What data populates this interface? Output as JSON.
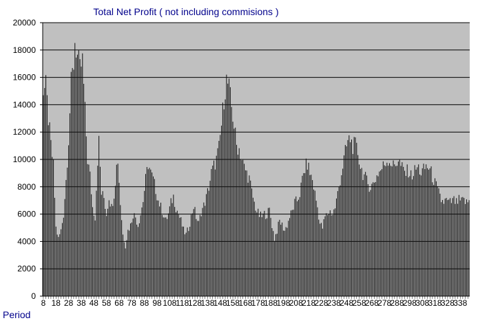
{
  "chart_data": {
    "type": "bar",
    "title": "Total Net Profit ( not including commisions )",
    "xlabel": "Period",
    "ylabel": "",
    "ylim": [
      0,
      20000
    ],
    "yticks": [
      0,
      2000,
      4000,
      6000,
      8000,
      10000,
      12000,
      14000,
      16000,
      18000,
      20000
    ],
    "ytick_labels": [
      "0",
      "2000",
      "4000",
      "6000",
      "8000",
      "10000",
      "12000",
      "14000",
      "16000",
      "18000",
      "20000"
    ],
    "grid": true,
    "x_start": 8,
    "x_end": 345,
    "xtick_labels": [
      "8",
      "18",
      "28",
      "38",
      "48",
      "58",
      "68",
      "78",
      "88",
      "98",
      "108",
      "118",
      "128",
      "138",
      "148",
      "158",
      "168",
      "178",
      "188",
      "198",
      "208",
      "218",
      "228",
      "238",
      "248",
      "258",
      "268",
      "278",
      "288",
      "298",
      "308",
      "318",
      "328",
      "338"
    ],
    "anchors": [
      [
        8,
        15000
      ],
      [
        10,
        15300
      ],
      [
        12,
        13000
      ],
      [
        14,
        11000
      ],
      [
        16,
        9500
      ],
      [
        18,
        5000
      ],
      [
        20,
        4200
      ],
      [
        22,
        4800
      ],
      [
        24,
        6000
      ],
      [
        26,
        8500
      ],
      [
        28,
        11500
      ],
      [
        30,
        15500
      ],
      [
        32,
        17000
      ],
      [
        33,
        18700
      ],
      [
        35,
        17500
      ],
      [
        37,
        16500
      ],
      [
        39,
        17200
      ],
      [
        41,
        13500
      ],
      [
        43,
        10000
      ],
      [
        45,
        8800
      ],
      [
        47,
        6500
      ],
      [
        49,
        5800
      ],
      [
        51,
        10000
      ],
      [
        52,
        11300
      ],
      [
        54,
        7500
      ],
      [
        56,
        7200
      ],
      [
        58,
        6000
      ],
      [
        60,
        7300
      ],
      [
        62,
        6500
      ],
      [
        64,
        7500
      ],
      [
        66,
        9500
      ],
      [
        67,
        10000
      ],
      [
        69,
        6800
      ],
      [
        71,
        4500
      ],
      [
        73,
        3700
      ],
      [
        75,
        4800
      ],
      [
        77,
        5200
      ],
      [
        79,
        6000
      ],
      [
        81,
        5800
      ],
      [
        83,
        5200
      ],
      [
        85,
        6000
      ],
      [
        87,
        7000
      ],
      [
        89,
        8500
      ],
      [
        91,
        9700
      ],
      [
        93,
        9000
      ],
      [
        95,
        8500
      ],
      [
        97,
        7800
      ],
      [
        99,
        7000
      ],
      [
        101,
        6500
      ],
      [
        103,
        6000
      ],
      [
        105,
        5500
      ],
      [
        107,
        6000
      ],
      [
        109,
        6800
      ],
      [
        111,
        7300
      ],
      [
        113,
        6500
      ],
      [
        115,
        6000
      ],
      [
        117,
        5500
      ],
      [
        119,
        4800
      ],
      [
        121,
        4500
      ],
      [
        123,
        5000
      ],
      [
        125,
        5800
      ],
      [
        127,
        6600
      ],
      [
        129,
        5800
      ],
      [
        131,
        5300
      ],
      [
        133,
        6200
      ],
      [
        135,
        6600
      ],
      [
        137,
        7200
      ],
      [
        139,
        8000
      ],
      [
        141,
        9000
      ],
      [
        143,
        9500
      ],
      [
        145,
        10000
      ],
      [
        147,
        10800
      ],
      [
        149,
        12500
      ],
      [
        151,
        14500
      ],
      [
        153,
        15800
      ],
      [
        155,
        15200
      ],
      [
        157,
        13800
      ],
      [
        159,
        12500
      ],
      [
        161,
        11000
      ],
      [
        163,
        10800
      ],
      [
        165,
        10000
      ],
      [
        167,
        9400
      ],
      [
        169,
        9000
      ],
      [
        171,
        8600
      ],
      [
        173,
        7600
      ],
      [
        175,
        6800
      ],
      [
        177,
        6200
      ],
      [
        179,
        5900
      ],
      [
        181,
        5800
      ],
      [
        183,
        6000
      ],
      [
        185,
        6000
      ],
      [
        187,
        6300
      ],
      [
        189,
        5200
      ],
      [
        191,
        4200
      ],
      [
        193,
        4800
      ],
      [
        195,
        5500
      ],
      [
        197,
        5200
      ],
      [
        199,
        4800
      ],
      [
        201,
        5200
      ],
      [
        203,
        5800
      ],
      [
        205,
        6200
      ],
      [
        207,
        6800
      ],
      [
        209,
        7000
      ],
      [
        211,
        7500
      ],
      [
        213,
        8500
      ],
      [
        215,
        9300
      ],
      [
        217,
        9700
      ],
      [
        219,
        9000
      ],
      [
        221,
        8500
      ],
      [
        223,
        7500
      ],
      [
        225,
        6500
      ],
      [
        227,
        5300
      ],
      [
        229,
        5000
      ],
      [
        231,
        5800
      ],
      [
        233,
        6000
      ],
      [
        235,
        6200
      ],
      [
        237,
        6000
      ],
      [
        239,
        6500
      ],
      [
        241,
        7500
      ],
      [
        243,
        8500
      ],
      [
        245,
        9500
      ],
      [
        247,
        10500
      ],
      [
        249,
        11300
      ],
      [
        251,
        11500
      ],
      [
        253,
        11000
      ],
      [
        255,
        11000
      ],
      [
        257,
        10500
      ],
      [
        259,
        9500
      ],
      [
        261,
        9000
      ],
      [
        263,
        8600
      ],
      [
        265,
        8200
      ],
      [
        267,
        8000
      ],
      [
        269,
        8200
      ],
      [
        271,
        8600
      ],
      [
        273,
        9000
      ],
      [
        275,
        9200
      ],
      [
        277,
        9500
      ],
      [
        279,
        9800
      ],
      [
        281,
        10000
      ],
      [
        283,
        9800
      ],
      [
        285,
        9500
      ],
      [
        287,
        9700
      ],
      [
        289,
        10000
      ],
      [
        291,
        9500
      ],
      [
        293,
        9200
      ],
      [
        295,
        9000
      ],
      [
        297,
        9200
      ],
      [
        299,
        8800
      ],
      [
        301,
        9000
      ],
      [
        303,
        9300
      ],
      [
        305,
        9400
      ],
      [
        307,
        9000
      ],
      [
        309,
        9200
      ],
      [
        311,
        9500
      ],
      [
        313,
        9400
      ],
      [
        315,
        9000
      ],
      [
        317,
        8500
      ],
      [
        319,
        8000
      ],
      [
        321,
        7500
      ],
      [
        323,
        7000
      ],
      [
        325,
        6900
      ],
      [
        327,
        7000
      ],
      [
        329,
        6800
      ],
      [
        331,
        6900
      ],
      [
        333,
        7000
      ],
      [
        335,
        6800
      ],
      [
        337,
        7000
      ],
      [
        339,
        6900
      ],
      [
        341,
        7000
      ],
      [
        343,
        6800
      ],
      [
        345,
        7000
      ]
    ]
  },
  "colors": {
    "plot_background": "#c0c0c0",
    "bar_color": "#111111",
    "title_color": "#00008b",
    "axis_text": "#000000"
  }
}
